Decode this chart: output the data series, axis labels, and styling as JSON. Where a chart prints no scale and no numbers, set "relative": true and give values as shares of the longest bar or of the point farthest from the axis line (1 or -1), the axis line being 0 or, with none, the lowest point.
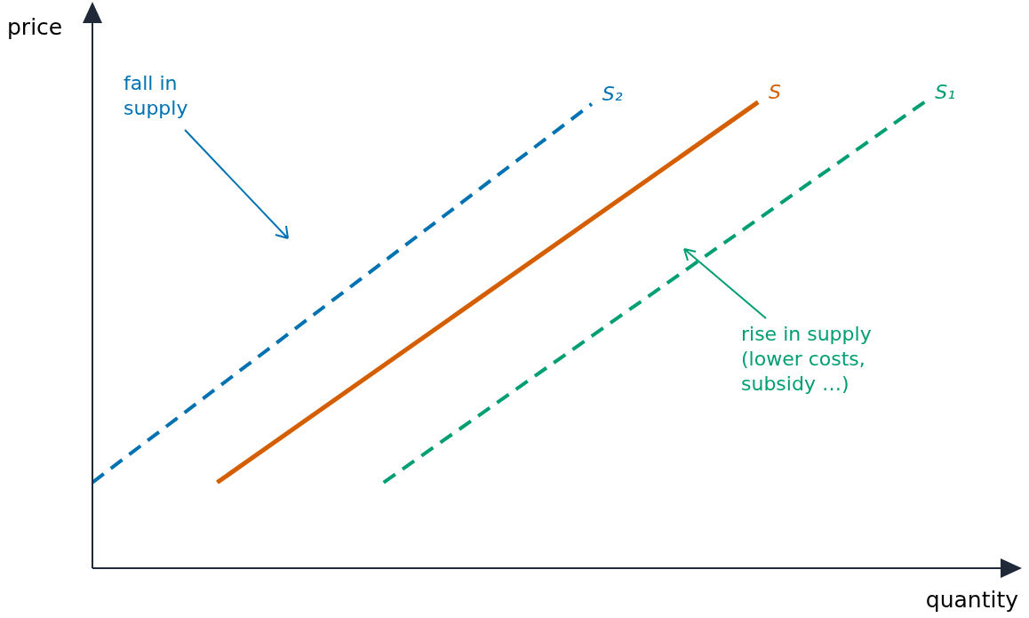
{
  "chart_data": {
    "type": "line",
    "relative": true,
    "xlabel": "quantity",
    "ylabel": "price",
    "legend": false,
    "marker": "none",
    "categories": [
      null,
      null,
      null,
      null,
      null,
      null,
      null,
      null,
      null,
      null,
      null,
      null,
      null,
      null,
      null,
      null,
      null,
      null,
      null,
      null,
      null,
      null,
      null
    ],
    "series": [
      {
        "name": "S₂",
        "color": "#0072b2",
        "line_style": "dashed",
        "values": [
          0.184,
          null,
          null,
          null,
          null,
          null,
          null,
          null,
          null,
          null,
          null,
          null,
          0.996,
          null,
          null,
          null,
          null,
          null,
          null,
          null,
          null,
          null,
          null
        ]
      },
      {
        "name": "S",
        "color": "#d55e00",
        "line_style": "solid",
        "values": [
          null,
          null,
          null,
          0.184,
          null,
          null,
          null,
          null,
          null,
          null,
          null,
          null,
          null,
          null,
          null,
          null,
          1,
          null,
          null,
          null,
          null,
          null,
          null
        ]
      },
      {
        "name": "S₁",
        "color": "#009e73",
        "line_style": "dashed",
        "values": [
          null,
          null,
          null,
          null,
          null,
          null,
          null,
          0.184,
          null,
          null,
          null,
          null,
          null,
          null,
          null,
          null,
          null,
          null,
          null,
          null,
          1,
          null,
          null
        ]
      }
    ],
    "annotations": [
      "fall in\nsupply",
      "rise in supply\n(lower costs,\nsubsidy …)"
    ]
  }
}
